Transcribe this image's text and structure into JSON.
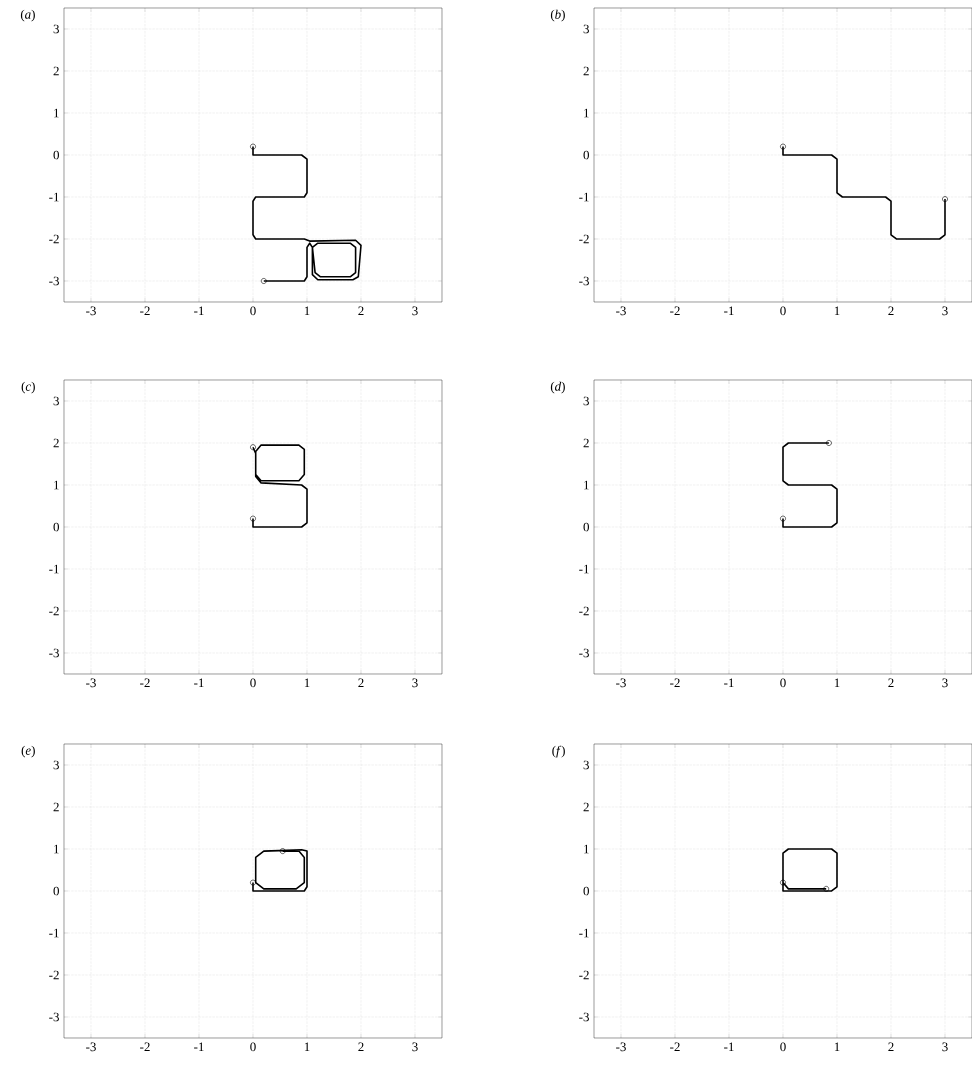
{
  "chart_data": [
    {
      "type": "line",
      "title": "(*a*)",
      "xlim": [
        -3.5,
        3.5
      ],
      "ylim": [
        -3.5,
        3.5
      ],
      "xticks": [
        -3,
        -2,
        -1,
        0,
        1,
        2,
        3
      ],
      "yticks": [
        -3,
        -2,
        -1,
        0,
        1,
        2,
        3
      ],
      "grid": true,
      "marker": "none",
      "series": [
        {
          "color": "#000000",
          "x": [
            0,
            0,
            0.9,
            1,
            1,
            0.95,
            0.05,
            0,
            0,
            0.05,
            0.95,
            1.05,
            1.9,
            2,
            1.95,
            1.85,
            1.2,
            1.1,
            1.1,
            1.2,
            1.8,
            1.9,
            1.9,
            1.8,
            1.25,
            1.15,
            1.1,
            1.05,
            1,
            1,
            0.95,
            0.2
          ],
          "values": [
            0.2,
            0,
            0,
            -0.1,
            -0.9,
            -1,
            -1,
            -1.1,
            -1.9,
            -2,
            -2,
            -2.05,
            -2.03,
            -2.15,
            -2.9,
            -2.97,
            -2.97,
            -2.85,
            -2.2,
            -2.1,
            -2.1,
            -2.2,
            -2.8,
            -2.9,
            -2.9,
            -2.8,
            -2.2,
            -2.1,
            -2.2,
            -2.9,
            -3,
            -3
          ]
        },
        {
          "type": "scatter",
          "marker": "circle",
          "color": "#000000",
          "x": [
            0,
            0.2
          ],
          "values": [
            0.2,
            -3
          ]
        }
      ]
    },
    {
      "type": "line",
      "title": "(*b*)",
      "xlim": [
        -3.5,
        3.5
      ],
      "ylim": [
        -3.5,
        3.5
      ],
      "xticks": [
        -3,
        -2,
        -1,
        0,
        1,
        2,
        3
      ],
      "yticks": [
        -3,
        -2,
        -1,
        0,
        1,
        2,
        3
      ],
      "grid": true,
      "marker": "none",
      "series": [
        {
          "color": "#000000",
          "x": [
            0,
            0,
            0.9,
            1,
            1,
            1.1,
            1.9,
            2,
            2,
            2.1,
            2.9,
            3,
            3
          ],
          "values": [
            0.2,
            0,
            0,
            -0.1,
            -0.9,
            -1,
            -1,
            -1.1,
            -1.9,
            -2,
            -2,
            -1.9,
            -1.05
          ]
        },
        {
          "type": "scatter",
          "marker": "circle",
          "color": "#000000",
          "x": [
            0,
            3
          ],
          "values": [
            0.2,
            -1.05
          ]
        }
      ]
    },
    {
      "type": "line",
      "title": "(*c*)",
      "xlim": [
        -3.5,
        3.5
      ],
      "ylim": [
        -3.5,
        3.5
      ],
      "xticks": [
        -3,
        -2,
        -1,
        0,
        1,
        2,
        3
      ],
      "yticks": [
        -3,
        -2,
        -1,
        0,
        1,
        2,
        3
      ],
      "grid": true,
      "marker": "none",
      "series": [
        {
          "color": "#000000",
          "x": [
            0,
            0,
            0.9,
            1,
            1,
            0.9,
            0.15,
            0.05,
            0.05,
            0.15,
            0.85,
            0.95,
            0.95,
            0.85,
            0.15,
            0.05,
            0.05,
            0
          ],
          "values": [
            0.2,
            0,
            0,
            0.1,
            0.9,
            1,
            1.05,
            1.2,
            1.8,
            1.95,
            1.95,
            1.85,
            1.25,
            1.1,
            1.1,
            1.25,
            1.75,
            1.9
          ]
        },
        {
          "type": "scatter",
          "marker": "circle",
          "color": "#000000",
          "x": [
            0,
            0
          ],
          "values": [
            0.2,
            1.9
          ]
        }
      ]
    },
    {
      "type": "line",
      "title": "(*d*)",
      "xlim": [
        -3.5,
        3.5
      ],
      "ylim": [
        -3.5,
        3.5
      ],
      "xticks": [
        -3,
        -2,
        -1,
        0,
        1,
        2,
        3
      ],
      "yticks": [
        -3,
        -2,
        -1,
        0,
        1,
        2,
        3
      ],
      "grid": true,
      "marker": "none",
      "series": [
        {
          "color": "#000000",
          "x": [
            0,
            0,
            0.9,
            1,
            1,
            0.9,
            0.1,
            0,
            0,
            0.1,
            0.85
          ],
          "values": [
            0.2,
            0,
            0,
            0.1,
            0.9,
            1,
            1,
            1.1,
            1.9,
            2,
            2
          ]
        },
        {
          "type": "scatter",
          "marker": "circle",
          "color": "#000000",
          "x": [
            0,
            0.85
          ],
          "values": [
            0.2,
            2
          ]
        }
      ]
    },
    {
      "type": "line",
      "title": "(*e*)",
      "xlim": [
        -3.5,
        3.5
      ],
      "ylim": [
        -3.5,
        3.5
      ],
      "xticks": [
        -3,
        -2,
        -1,
        0,
        1,
        2,
        3
      ],
      "yticks": [
        -3,
        -2,
        -1,
        0,
        1,
        2,
        3
      ],
      "grid": true,
      "marker": "none",
      "series": [
        {
          "color": "#000000",
          "x": [
            0,
            0,
            0.95,
            1,
            1,
            0.9,
            0.2,
            0.05,
            0.05,
            0.2,
            0.8,
            0.95,
            0.95,
            0.85,
            0.55
          ],
          "values": [
            0.2,
            0,
            0,
            0.1,
            0.95,
            0.98,
            0.95,
            0.8,
            0.2,
            0.05,
            0.05,
            0.2,
            0.8,
            0.95,
            0.95
          ]
        },
        {
          "type": "scatter",
          "marker": "circle",
          "color": "#000000",
          "x": [
            0,
            0.55
          ],
          "values": [
            0.2,
            0.95
          ]
        }
      ]
    },
    {
      "type": "line",
      "title": "(*f*)",
      "xlim": [
        -3.5,
        3.5
      ],
      "ylim": [
        -3.5,
        3.5
      ],
      "xticks": [
        -3,
        -2,
        -1,
        0,
        1,
        2,
        3
      ],
      "yticks": [
        -3,
        -2,
        -1,
        0,
        1,
        2,
        3
      ],
      "grid": true,
      "marker": "none",
      "series": [
        {
          "color": "#000000",
          "x": [
            0,
            0,
            0.9,
            1,
            1,
            0.9,
            0.1,
            0,
            0,
            0.1,
            0.8
          ],
          "values": [
            0.2,
            0,
            0,
            0.1,
            0.9,
            1,
            1,
            0.9,
            0.2,
            0.05,
            0.05
          ]
        },
        {
          "type": "scatter",
          "marker": "circle",
          "color": "#000000",
          "x": [
            0,
            0.8
          ],
          "values": [
            0.2,
            0.05
          ]
        }
      ]
    }
  ]
}
